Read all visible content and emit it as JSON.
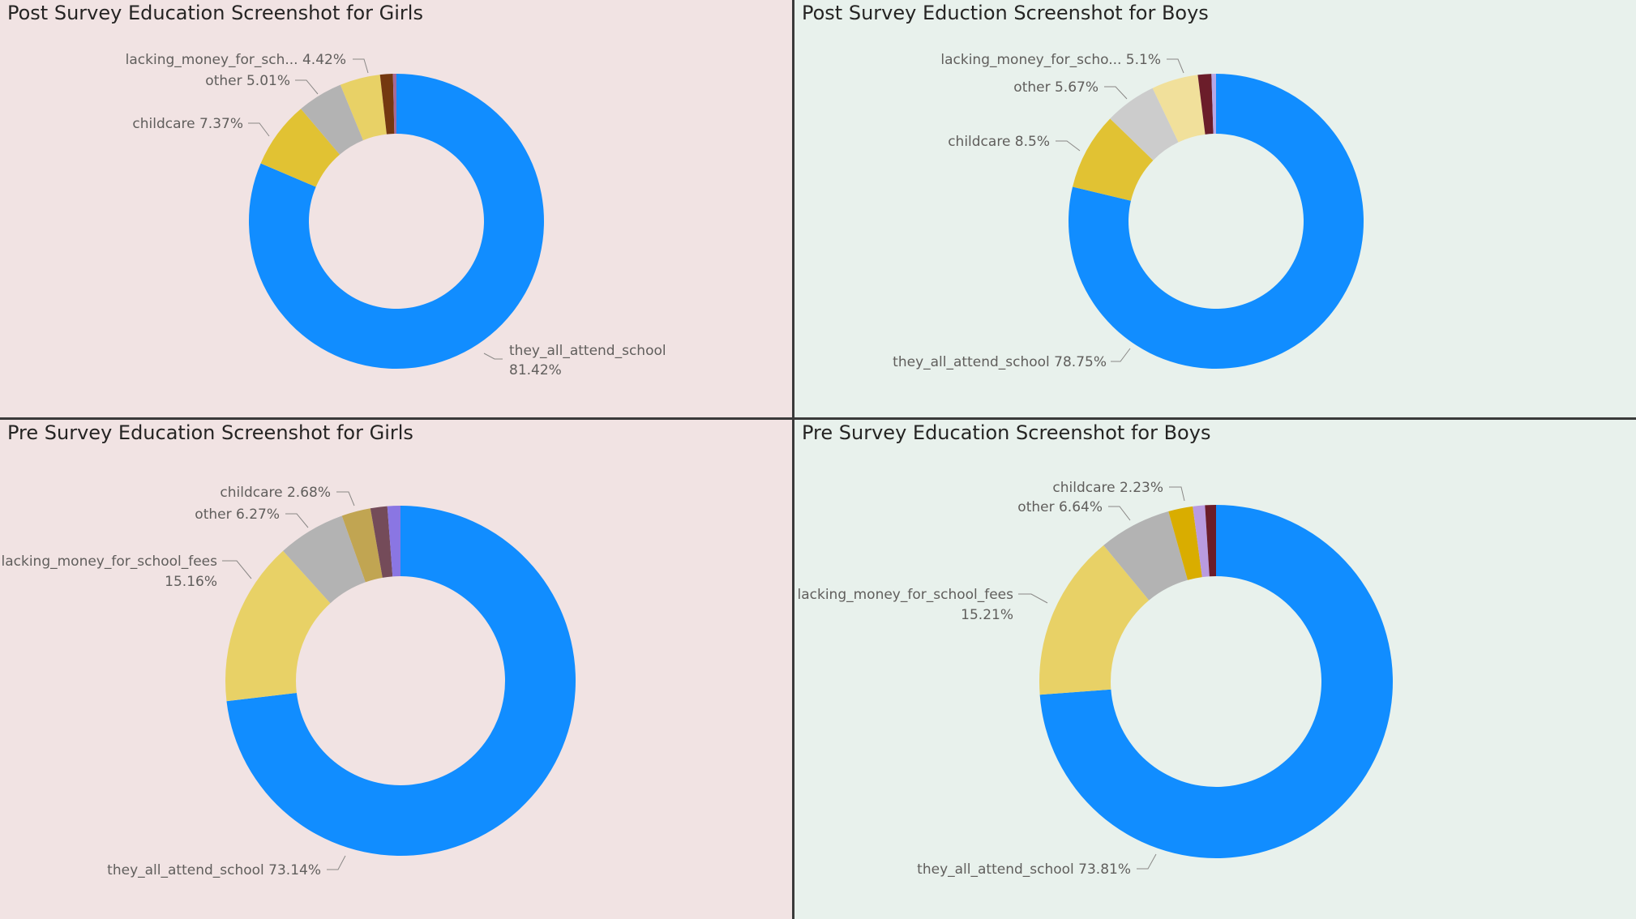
{
  "colors": {
    "girls_bg": "#f1e3e3",
    "boys_bg": "#e8f1ec"
  },
  "chart_data": [
    {
      "type": "pie",
      "title": "Post Survey Education Screenshot for Girls",
      "slices": [
        {
          "name": "they_all_attend_school",
          "value": 81.42,
          "label": "they_all_attend_school",
          "label2": "81.42%",
          "color": "#118dff"
        },
        {
          "name": "childcare",
          "value": 7.37,
          "label": "childcare 7.37%",
          "color": "#e1c233"
        },
        {
          "name": "other",
          "value": 5.01,
          "label": "other 5.01%",
          "color": "#b3b3b3"
        },
        {
          "name": "lacking_money_for_school_fees",
          "value": 4.42,
          "label": "lacking_money_for_sch... 4.42%",
          "color": "#e8d166"
        },
        {
          "name": "slice-5",
          "value": 1.4,
          "color": "#743810"
        },
        {
          "name": "slice-6",
          "value": 0.38,
          "color": "#a66999"
        }
      ]
    },
    {
      "type": "pie",
      "title": "Post Survey Eduction Screenshot for Boys",
      "slices": [
        {
          "name": "they_all_attend_school",
          "value": 78.75,
          "label": "they_all_attend_school 78.75%",
          "color": "#118dff"
        },
        {
          "name": "childcare",
          "value": 8.5,
          "label": "childcare 8.5%",
          "color": "#e1c233"
        },
        {
          "name": "other",
          "value": 5.67,
          "label": "other 5.67%",
          "color": "#cccccc"
        },
        {
          "name": "lacking_money_for_school_fees",
          "value": 5.1,
          "label": "lacking_money_for_scho... 5.1%",
          "color": "#f1e09b"
        },
        {
          "name": "slice-5",
          "value": 1.48,
          "color": "#6b1d2a"
        },
        {
          "name": "slice-6",
          "value": 0.5,
          "color": "#b7a7e6"
        }
      ]
    },
    {
      "type": "pie",
      "title": "Pre Survey Education Screenshot for Girls",
      "slices": [
        {
          "name": "they_all_attend_school",
          "value": 73.14,
          "label": "they_all_attend_school 73.14%",
          "color": "#118dff"
        },
        {
          "name": "lacking_money_for_school_fees",
          "value": 15.16,
          "label": "lacking_money_for_school_fees",
          "label2": "15.16%",
          "color": "#e8d166"
        },
        {
          "name": "other",
          "value": 6.27,
          "label": "other 6.27%",
          "color": "#b3b3b3"
        },
        {
          "name": "childcare",
          "value": 2.68,
          "label": "childcare 2.68%",
          "color": "#c1a552"
        },
        {
          "name": "slice-5",
          "value": 1.55,
          "color": "#744b59"
        },
        {
          "name": "slice-6",
          "value": 1.2,
          "color": "#8a76e3"
        }
      ]
    },
    {
      "type": "pie",
      "title": "Pre Survey Education Screenshot for Boys",
      "slices": [
        {
          "name": "they_all_attend_school",
          "value": 73.81,
          "label": "they_all_attend_school 73.81%",
          "color": "#118dff"
        },
        {
          "name": "lacking_money_for_school_fees",
          "value": 15.21,
          "label": "lacking_money_for_school_fees",
          "label2": "15.21%",
          "color": "#e8d166"
        },
        {
          "name": "other",
          "value": 6.64,
          "label": "other 6.64%",
          "color": "#b3b3b3"
        },
        {
          "name": "childcare",
          "value": 2.23,
          "label": "childcare 2.23%",
          "color": "#d9ad00"
        },
        {
          "name": "slice-5",
          "value": 1.11,
          "color": "#b99be0"
        },
        {
          "name": "slice-6",
          "value": 1.0,
          "color": "#6b1d2a"
        }
      ]
    }
  ]
}
